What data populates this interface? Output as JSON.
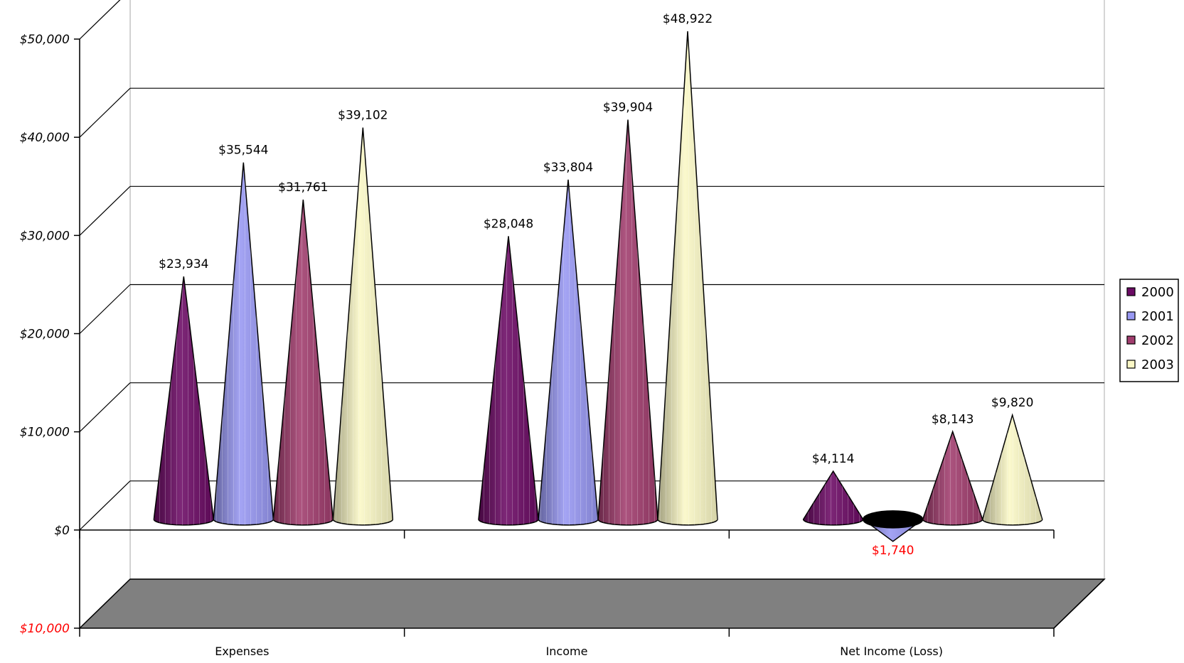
{
  "chart_data": {
    "type": "bar",
    "style": "3d-cone",
    "categories": [
      "Expenses",
      "Income",
      "Net Income (Loss)"
    ],
    "series": [
      {
        "name": "2000",
        "values": [
          23934,
          28048,
          4114
        ],
        "labels": [
          "$23,934",
          "$28,048",
          "$4,114"
        ],
        "color": "#6b0a64"
      },
      {
        "name": "2001",
        "values": [
          35544,
          33804,
          -1740
        ],
        "labels": [
          "$35,544",
          "$33,804",
          "$1,740"
        ],
        "color": "#9898f2"
      },
      {
        "name": "2002",
        "values": [
          31761,
          39904,
          8143
        ],
        "labels": [
          "$31,761",
          "$39,904",
          "$8,143"
        ],
        "color": "#a13d6e"
      },
      {
        "name": "2003",
        "values": [
          39102,
          48922,
          9820
        ],
        "labels": [
          "$39,102",
          "$48,922",
          "$9,820"
        ],
        "color": "#fbf8c6"
      }
    ],
    "y_ticks": [
      {
        "value": 50000,
        "label": "$50,000"
      },
      {
        "value": 40000,
        "label": "$40,000"
      },
      {
        "value": 30000,
        "label": "$30,000"
      },
      {
        "value": 20000,
        "label": "$20,000"
      },
      {
        "value": 10000,
        "label": "$10,000"
      },
      {
        "value": 0,
        "label": "$0"
      },
      {
        "value": -10000,
        "label": "$10,000",
        "negative": true
      }
    ],
    "ylim": [
      -10000,
      50000
    ],
    "negative_color": "#ff0000",
    "floor_color": "#808080",
    "grid": true,
    "legend_position": "right",
    "title": "",
    "xlabel": "",
    "ylabel": ""
  }
}
